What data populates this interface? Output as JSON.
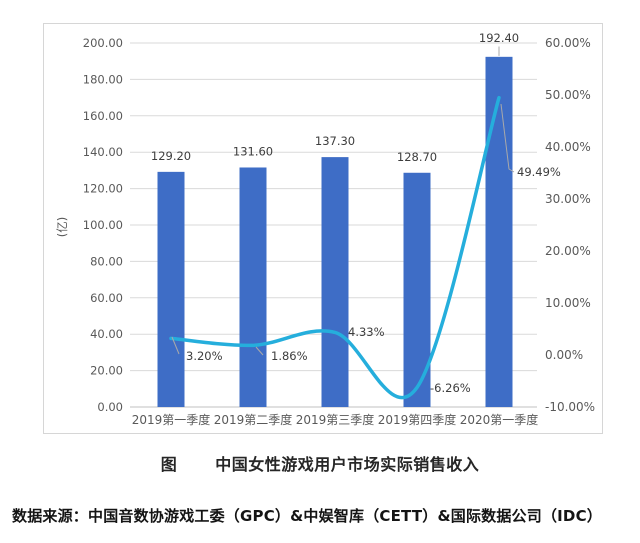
{
  "chart_data": {
    "type": "bar",
    "subtype": "bar-line-combo",
    "categories": [
      "2019第一季度",
      "2019第二季度",
      "2019第三季度",
      "2019第四季度",
      "2020第一季度"
    ],
    "series": [
      {
        "id": "bars",
        "type": "bar",
        "axis": "left",
        "color": "#3E6DC6",
        "values": [
          129.2,
          131.6,
          137.3,
          128.7,
          192.4
        ],
        "labels": [
          "129.20",
          "131.60",
          "137.30",
          "128.70",
          "192.40"
        ]
      },
      {
        "id": "line",
        "type": "line",
        "axis": "right",
        "color": "#25AEDC",
        "values": [
          3.2,
          1.86,
          4.33,
          -6.26,
          49.49
        ],
        "labels": [
          "3.20%",
          "1.86%",
          "4.33%",
          "-6.26%",
          "49.49%"
        ]
      }
    ],
    "left_axis": {
      "title": "(亿)",
      "min": 0,
      "max": 200,
      "step": 20,
      "tick_labels": [
        "200.00",
        "180.00",
        "160.00",
        "140.00",
        "120.00",
        "100.00",
        "80.00",
        "60.00",
        "40.00",
        "20.00",
        "0.00"
      ]
    },
    "right_axis": {
      "min": -10,
      "max": 60,
      "step": 10,
      "tick_labels": [
        "60.00%",
        "50.00%",
        "40.00%",
        "30.00%",
        "20.00%",
        "10.00%",
        "0.00%",
        "-10.00%"
      ]
    },
    "grid": true,
    "legend_position": "none"
  },
  "caption": {
    "prefix": "图",
    "title": "中国女性游戏用户市场实际销售收入"
  },
  "source": "数据来源：中国音数协游戏工委（GPC）&中娱智库（CETT）&国际数据公司（IDC）"
}
